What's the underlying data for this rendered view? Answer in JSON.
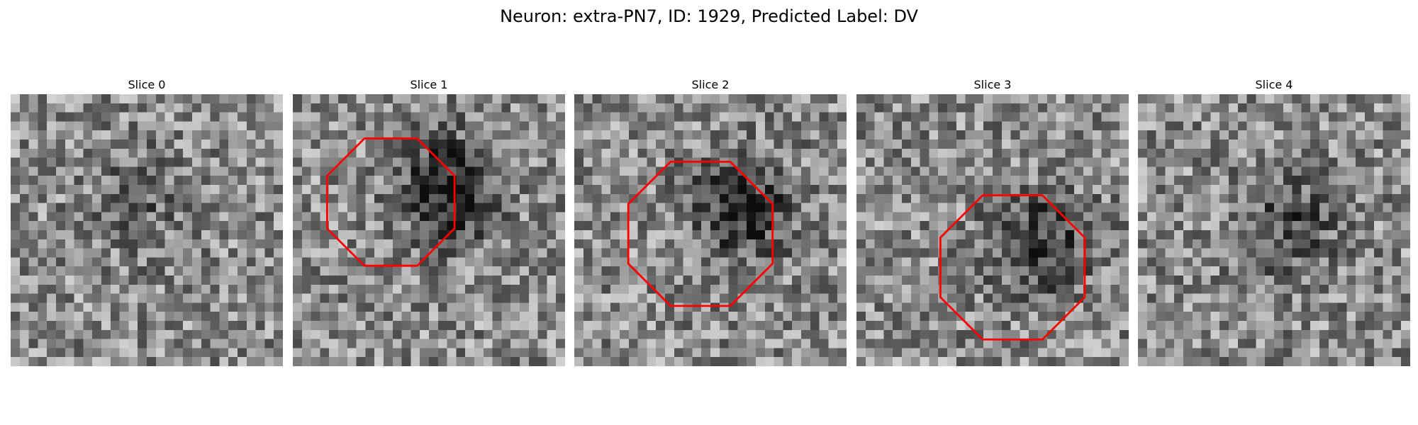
{
  "figure": {
    "title": "Neuron: extra-PN7, ID: 1929, Predicted Label: DV"
  },
  "panels": [
    {
      "title": "Slice 0",
      "roi": false,
      "dark_spot": [
        14,
        11
      ],
      "spot_strength": 0.35
    },
    {
      "title": "Slice 1",
      "roi": true,
      "roi_color": "#ff0000",
      "dark_spot": [
        17,
        10
      ],
      "spot_strength": 1.0
    },
    {
      "title": "Slice 2",
      "roi": true,
      "roi_color": "#ff0000",
      "dark_spot": [
        18,
        12
      ],
      "spot_strength": 0.85
    },
    {
      "title": "Slice 3",
      "roi": true,
      "roi_color": "#ff0000",
      "dark_spot": [
        20,
        16
      ],
      "spot_strength": 0.75
    },
    {
      "title": "Slice 4",
      "roi": false,
      "dark_spot": [
        16,
        14
      ],
      "spot_strength": 0.55
    }
  ],
  "colors": {
    "roi": "#ff0000",
    "colormap": "gray"
  }
}
